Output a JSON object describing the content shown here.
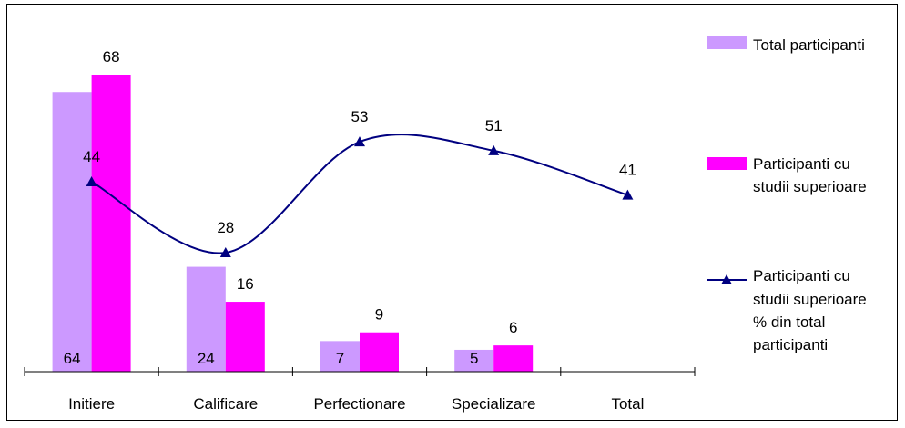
{
  "chart_data": {
    "type": "bar",
    "categories": [
      "Initiere",
      "Calificare",
      "Perfectionare",
      "Specializare",
      "Total"
    ],
    "series": [
      {
        "name": "Total participanti",
        "kind": "bar",
        "color": "#cc99ff",
        "values": [
          64,
          24,
          7,
          5,
          null
        ],
        "labels": [
          "64",
          "24",
          "7",
          "5",
          ""
        ]
      },
      {
        "name": "Participanti cu studii superioare",
        "kind": "bar",
        "color": "#ff00ff",
        "values": [
          68,
          16,
          9,
          6,
          null
        ],
        "labels": [
          "68",
          "16",
          "9",
          "6",
          ""
        ]
      },
      {
        "name": "Participanti cu studii superioare % din total participanti",
        "kind": "line",
        "smooth": true,
        "marker": "triangle",
        "color": "#000080",
        "values": [
          44,
          28,
          53,
          51,
          41
        ],
        "labels": [
          "44",
          "28",
          "53",
          "51",
          "41"
        ]
      }
    ],
    "ylim": [
      0,
      80
    ],
    "grid": false,
    "legend": {
      "placement": "right",
      "entries": [
        {
          "lines": [
            "Total participanti"
          ]
        },
        {
          "lines": [
            "Participanti cu",
            "studii superioare"
          ]
        },
        {
          "lines": [
            "Participanti cu",
            "studii superioare",
            "% din total",
            "participanti"
          ]
        }
      ]
    }
  }
}
